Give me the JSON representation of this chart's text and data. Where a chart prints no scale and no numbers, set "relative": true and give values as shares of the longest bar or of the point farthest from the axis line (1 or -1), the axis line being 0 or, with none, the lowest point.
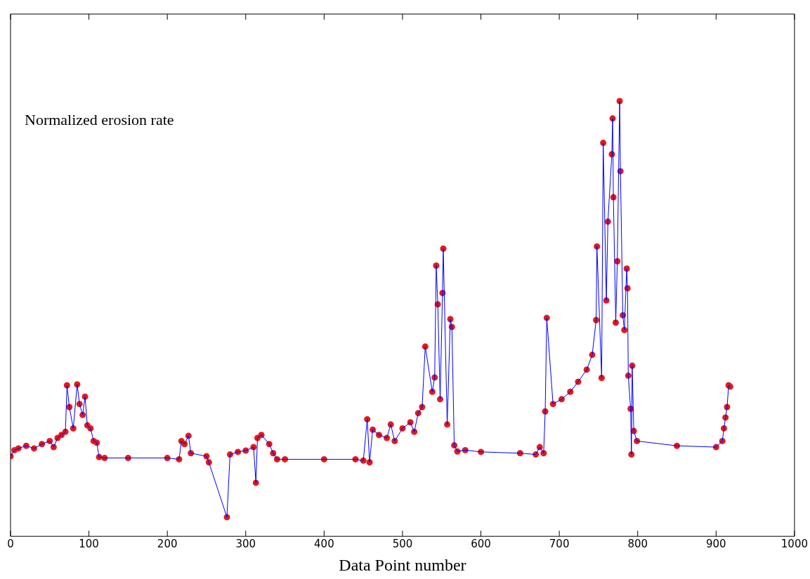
{
  "chart_data": {
    "type": "line",
    "relative": true,
    "xlabel": "Data Point number",
    "ylabel": "Normalized erosion rate",
    "xlim": [
      0,
      1000
    ],
    "xticks": [
      0,
      100,
      200,
      300,
      400,
      500,
      600,
      700,
      800,
      900,
      1000
    ],
    "x": [
      0,
      5,
      10,
      20,
      30,
      40,
      50,
      55,
      60,
      65,
      70,
      72,
      75,
      80,
      85,
      88,
      92,
      95,
      98,
      102,
      106,
      110,
      113,
      120,
      150,
      200,
      215,
      218,
      222,
      227,
      230,
      250,
      253,
      276,
      280,
      290,
      300,
      310,
      313,
      315,
      320,
      330,
      335,
      340,
      350,
      400,
      440,
      450,
      455,
      458,
      462,
      470,
      480,
      485,
      490,
      500,
      510,
      515,
      520,
      525,
      529,
      538,
      541,
      543,
      545,
      548,
      551,
      552,
      557,
      561,
      563,
      566,
      570,
      580,
      600,
      650,
      670,
      675,
      680,
      682,
      684,
      692,
      703,
      714,
      724,
      735,
      742,
      747,
      748,
      754,
      756,
      760,
      762,
      767,
      768,
      769,
      772,
      774,
      777,
      778,
      781,
      783,
      786,
      787,
      788,
      791,
      792,
      793,
      795,
      799,
      850,
      900,
      908,
      910,
      912,
      914,
      916,
      918
    ],
    "series": [
      {
        "type": "line",
        "color": "#0000ff",
        "marker": "none",
        "values": [
          0.184,
          0.198,
          0.202,
          0.208,
          0.202,
          0.212,
          0.219,
          0.205,
          0.226,
          0.233,
          0.24,
          0.347,
          0.297,
          0.248,
          0.349,
          0.304,
          0.279,
          0.321,
          0.255,
          0.248,
          0.219,
          0.215,
          0.182,
          0.18,
          0.18,
          0.18,
          0.177,
          0.219,
          0.212,
          0.231,
          0.191,
          0.184,
          0.17,
          0.044,
          0.188,
          0.194,
          0.197,
          0.205,
          0.123,
          0.226,
          0.233,
          0.212,
          0.191,
          0.177,
          0.177,
          0.177,
          0.177,
          0.174,
          0.269,
          0.17,
          0.245,
          0.233,
          0.226,
          0.257,
          0.219,
          0.248,
          0.262,
          0.24,
          0.283,
          0.297,
          0.436,
          0.332,
          0.365,
          0.622,
          0.533,
          0.315,
          0.559,
          0.661,
          0.257,
          0.499,
          0.481,
          0.209,
          0.195,
          0.198,
          0.194,
          0.191,
          0.188,
          0.205,
          0.191,
          0.287,
          0.502,
          0.304,
          0.315,
          0.332,
          0.355,
          0.383,
          0.417,
          0.497,
          0.666,
          0.364,
          0.904,
          0.542,
          0.723,
          0.878,
          0.96,
          0.779,
          0.491,
          0.632,
          1.0,
          0.839,
          0.508,
          0.474,
          0.615,
          0.57,
          0.369,
          0.293,
          0.188,
          0.392,
          0.242,
          0.219,
          0.208,
          0.205,
          0.219,
          0.248,
          0.273,
          0.297,
          0.347,
          0.344
        ]
      },
      {
        "type": "scatter",
        "color": "#e31a1c",
        "marker": "circle",
        "values": [
          0.184,
          0.198,
          0.202,
          0.208,
          0.202,
          0.212,
          0.219,
          0.205,
          0.226,
          0.233,
          0.24,
          0.347,
          0.297,
          0.248,
          0.349,
          0.304,
          0.279,
          0.321,
          0.255,
          0.248,
          0.219,
          0.215,
          0.182,
          0.18,
          0.18,
          0.18,
          0.177,
          0.219,
          0.212,
          0.231,
          0.191,
          0.184,
          0.17,
          0.044,
          0.188,
          0.194,
          0.197,
          0.205,
          0.123,
          0.226,
          0.233,
          0.212,
          0.191,
          0.177,
          0.177,
          0.177,
          0.177,
          0.174,
          0.269,
          0.17,
          0.245,
          0.233,
          0.226,
          0.257,
          0.219,
          0.248,
          0.262,
          0.24,
          0.283,
          0.297,
          0.436,
          0.332,
          0.365,
          0.622,
          0.533,
          0.315,
          0.559,
          0.661,
          0.257,
          0.499,
          0.481,
          0.209,
          0.195,
          0.198,
          0.194,
          0.191,
          0.188,
          0.205,
          0.191,
          0.287,
          0.502,
          0.304,
          0.315,
          0.332,
          0.355,
          0.383,
          0.417,
          0.497,
          0.666,
          0.364,
          0.904,
          0.542,
          0.723,
          0.878,
          0.96,
          0.779,
          0.491,
          0.632,
          1.0,
          0.839,
          0.508,
          0.474,
          0.615,
          0.57,
          0.369,
          0.293,
          0.188,
          0.392,
          0.242,
          0.219,
          0.208,
          0.205,
          0.219,
          0.248,
          0.273,
          0.297,
          0.347,
          0.344
        ]
      }
    ],
    "grid": false,
    "legend": false
  }
}
